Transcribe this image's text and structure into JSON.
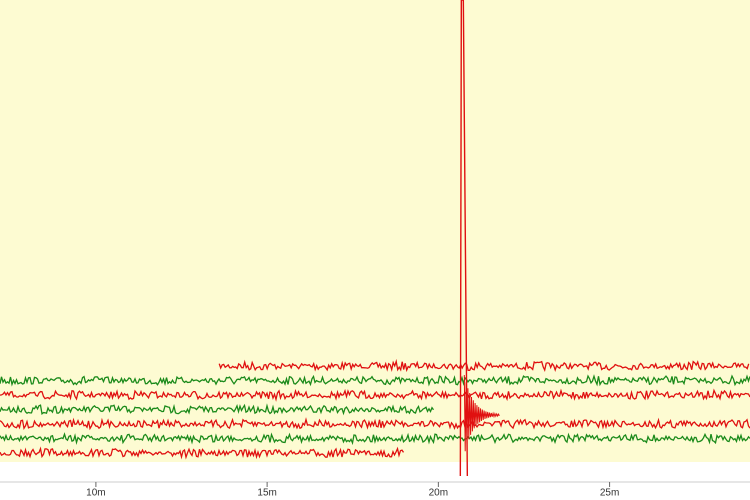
{
  "chart_data": {
    "type": "traces",
    "xlim": [
      7.2,
      29.1
    ],
    "xticks": [
      {
        "value": 10,
        "label": "10m"
      },
      {
        "value": 15,
        "label": "15m"
      },
      {
        "value": 20,
        "label": "20m"
      },
      {
        "value": 25,
        "label": "25m"
      }
    ],
    "background": "#fdfbd2",
    "series": [
      {
        "color": "#e01010",
        "x": [
          13.6,
          29.1
        ]
      },
      {
        "color": "#1a8a1a",
        "x": [
          7.2,
          29.1
        ]
      },
      {
        "color": "#e01010",
        "x": [
          7.2,
          29.1
        ]
      },
      {
        "color": "#1a8a1a",
        "x": [
          7.2,
          19.9
        ]
      },
      {
        "color": "#e01010",
        "x": [
          7.2,
          29.1
        ]
      },
      {
        "color": "#1a8a1a",
        "x": [
          7.2,
          29.1
        ]
      },
      {
        "color": "#e01010",
        "x": [
          7.2,
          19.0
        ]
      }
    ],
    "event": {
      "x": 20.7,
      "color": "#e01010"
    }
  }
}
